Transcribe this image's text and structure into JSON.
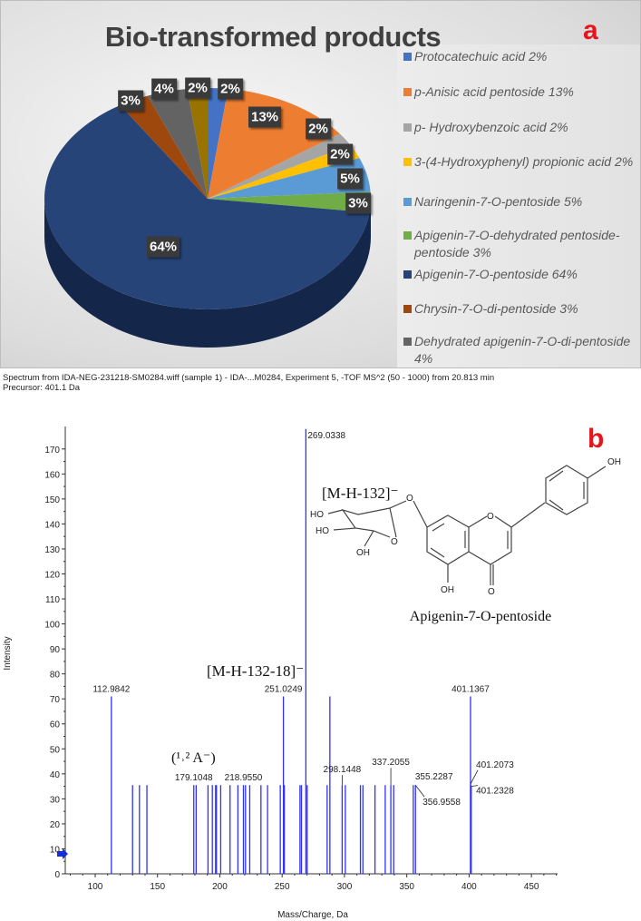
{
  "panel_a": {
    "letter": "a"
  },
  "panel_b": {
    "letter": "b",
    "header_line1": "Spectrum from IDA-NEG-231218-SM0284.wiff (sample 1) - IDA-...M0284, Experiment 5, -TOF MS^2 (50 - 1000) from 20.813 min",
    "header_line2": "Precursor: 401.1 Da",
    "annotations": {
      "m_h_132": "[M-H-132]⁻",
      "m_h_132_18": "[M-H-132-18]⁻",
      "a_fragment": "(¹˒² A⁻)",
      "compound_name": "Apigenin-7-O-pentoside"
    },
    "structure_atoms": {
      "oh_b": "OH",
      "ho_1": "HO",
      "ho_2": "HO",
      "oh_sugar": "OH",
      "oh_5": "OH",
      "o_ring": "O",
      "o_link": "O",
      "o_sugar": "O",
      "o_carbonyl": "O"
    }
  },
  "chart_data": [
    {
      "type": "pie",
      "title": "Bio-transformed products",
      "legend_placement": "right",
      "start": "top, clockwise",
      "slices": [
        {
          "name": "Protocatechuic acid 2%",
          "value": 2,
          "label": "2%",
          "color": "#4472C4"
        },
        {
          "name": "p-Anisic acid pentoside  13%",
          "value": 13,
          "label": "13%",
          "color": "#ED7D31"
        },
        {
          "name": "p- Hydroxybenzoic acid 2%",
          "value": 2,
          "label": "2%",
          "color": "#A5A5A5"
        },
        {
          "name": "3-(4-Hydroxyphenyl) propionic acid 2%",
          "value": 2,
          "label": "2%",
          "color": "#FFC000"
        },
        {
          "name": "Naringenin-7-O-pentoside 5%",
          "value": 5,
          "label": "5%",
          "color": "#5B9BD5"
        },
        {
          "name": "Apigenin-7-O-dehydrated pentoside-pentoside 3%",
          "value": 3,
          "label": "3%",
          "color": "#70AD47"
        },
        {
          "name": "Apigenin-7-O-pentoside 64%",
          "value": 64,
          "label": "64%",
          "color": "#264478"
        },
        {
          "name": "Chrysin-7-O-di-pentoside 3%",
          "value": 3,
          "label": "3%",
          "color": "#9E480E"
        },
        {
          "name": "Dehydrated apigenin-7-O-di-pentoside 4%",
          "value": 4,
          "label": "4%",
          "color": "#636363"
        },
        {
          "value": 2,
          "label": "2%",
          "color": "#997300"
        }
      ]
    },
    {
      "type": "bar",
      "subtype": "mass spectrum (stick)",
      "xlabel": "Mass/Charge, Da",
      "ylabel": "Intensity",
      "xlim": [
        76,
        471
      ],
      "ylim": [
        0,
        179
      ],
      "xticks": [
        100,
        150,
        200,
        250,
        300,
        350,
        400,
        450
      ],
      "yticks": [
        0,
        10,
        20,
        30,
        40,
        50,
        60,
        70,
        80,
        90,
        100,
        110,
        120,
        130,
        140,
        150,
        160,
        170
      ],
      "color": "#3030ff",
      "precursor_marker": 8,
      "peaks": [
        {
          "mz": 112.9842,
          "intensity": 71,
          "label": "112.9842"
        },
        {
          "mz": 130,
          "intensity": 35.5
        },
        {
          "mz": 135.5,
          "intensity": 35.5
        },
        {
          "mz": 141.5,
          "intensity": 35.5
        },
        {
          "mz": 179.1048,
          "intensity": 35.5,
          "label": "179.1048"
        },
        {
          "mz": 181,
          "intensity": 35.5
        },
        {
          "mz": 190.5,
          "intensity": 35.5
        },
        {
          "mz": 194,
          "intensity": 35.5
        },
        {
          "mz": 196.6,
          "intensity": 35.5
        },
        {
          "mz": 197.3,
          "intensity": 35.5
        },
        {
          "mz": 200.7,
          "intensity": 35.5
        },
        {
          "mz": 208.2,
          "intensity": 35.5
        },
        {
          "mz": 214.5,
          "intensity": 35.5
        },
        {
          "mz": 218.955,
          "intensity": 35.5,
          "label": "218.9550"
        },
        {
          "mz": 220.6,
          "intensity": 35.5
        },
        {
          "mz": 224,
          "intensity": 35.5
        },
        {
          "mz": 233,
          "intensity": 35.5
        },
        {
          "mz": 238.3,
          "intensity": 35.5
        },
        {
          "mz": 248.5,
          "intensity": 35.5
        },
        {
          "mz": 251.0249,
          "intensity": 71,
          "label": "251.0249"
        },
        {
          "mz": 251.8,
          "intensity": 35.5
        },
        {
          "mz": 264.3,
          "intensity": 35.5
        },
        {
          "mz": 265.5,
          "intensity": 35.5
        },
        {
          "mz": 269.0338,
          "intensity": 178,
          "label": "269.0338"
        },
        {
          "mz": 270.1,
          "intensity": 35.5
        },
        {
          "mz": 286.1,
          "intensity": 35.5
        },
        {
          "mz": 288.3,
          "intensity": 71
        },
        {
          "mz": 298.1448,
          "intensity": 35.5,
          "label": "298.1448"
        },
        {
          "mz": 300.7,
          "intensity": 35.5
        },
        {
          "mz": 312.8,
          "intensity": 35.5
        },
        {
          "mz": 314.8,
          "intensity": 35.5
        },
        {
          "mz": 324.5,
          "intensity": 35.5
        },
        {
          "mz": 332.7,
          "intensity": 35.5
        },
        {
          "mz": 337.2055,
          "intensity": 35.5,
          "label": "337.2055"
        },
        {
          "mz": 339.5,
          "intensity": 35.5
        },
        {
          "mz": 355.2287,
          "intensity": 35.5,
          "label": "355.2287"
        },
        {
          "mz": 356.9558,
          "intensity": 35.5,
          "label": "356.9558"
        },
        {
          "mz": 401.1367,
          "intensity": 71,
          "label": "401.1367"
        },
        {
          "mz": 401.2073,
          "intensity": 36,
          "label": "401.2073"
        },
        {
          "mz": 401.2328,
          "intensity": 35,
          "label": "401.2328"
        },
        {
          "mz": 401.5,
          "intensity": 35
        },
        {
          "mz": 401.7,
          "intensity": 35
        }
      ]
    }
  ]
}
